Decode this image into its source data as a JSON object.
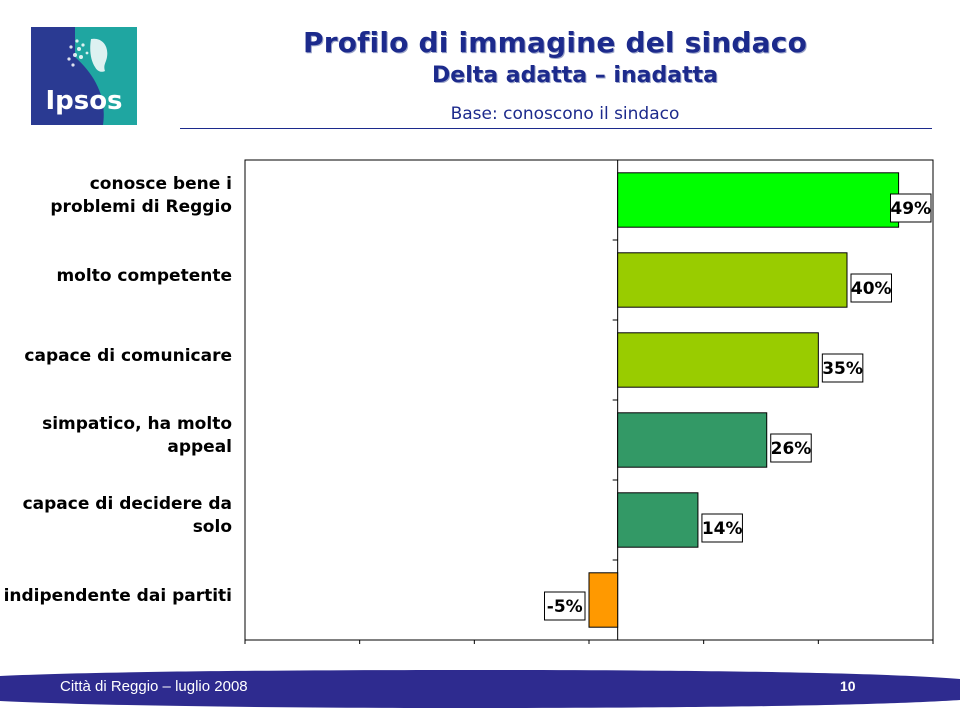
{
  "header": {
    "logo_text": "Ipsos",
    "title": "Profilo di immagine del sindaco",
    "subtitle": "Delta adatta – inadatta",
    "base": "Base: conoscono il sindaco"
  },
  "colors": {
    "brand_blue": "#1c2a8c",
    "logo_blue": "#2a3a92",
    "logo_teal": "#1fa6a1",
    "bar_bright_green": "#00ff00",
    "bar_olive_green": "#99cc00",
    "bar_sea_green": "#339966",
    "bar_orange": "#ff9900"
  },
  "chart_data": {
    "type": "bar",
    "orientation": "horizontal",
    "categories": [
      "conosce bene i problemi di Reggio",
      "molto competente",
      "capace di comunicare",
      "simpatico, ha molto appeal",
      "capace di decidere da solo",
      "indipendente dai partiti"
    ],
    "values": [
      49,
      40,
      35,
      26,
      14,
      -5
    ],
    "value_labels": [
      "49%",
      "40%",
      "35%",
      "26%",
      "14%",
      "-5%"
    ],
    "bar_colors": [
      "#00ff00",
      "#99cc00",
      "#99cc00",
      "#339966",
      "#339966",
      "#ff9900"
    ],
    "xlim": [
      -65,
      55
    ],
    "unit": "%",
    "grid": false
  },
  "footer": {
    "text": "Città di Reggio – luglio 2008",
    "page": "10"
  }
}
